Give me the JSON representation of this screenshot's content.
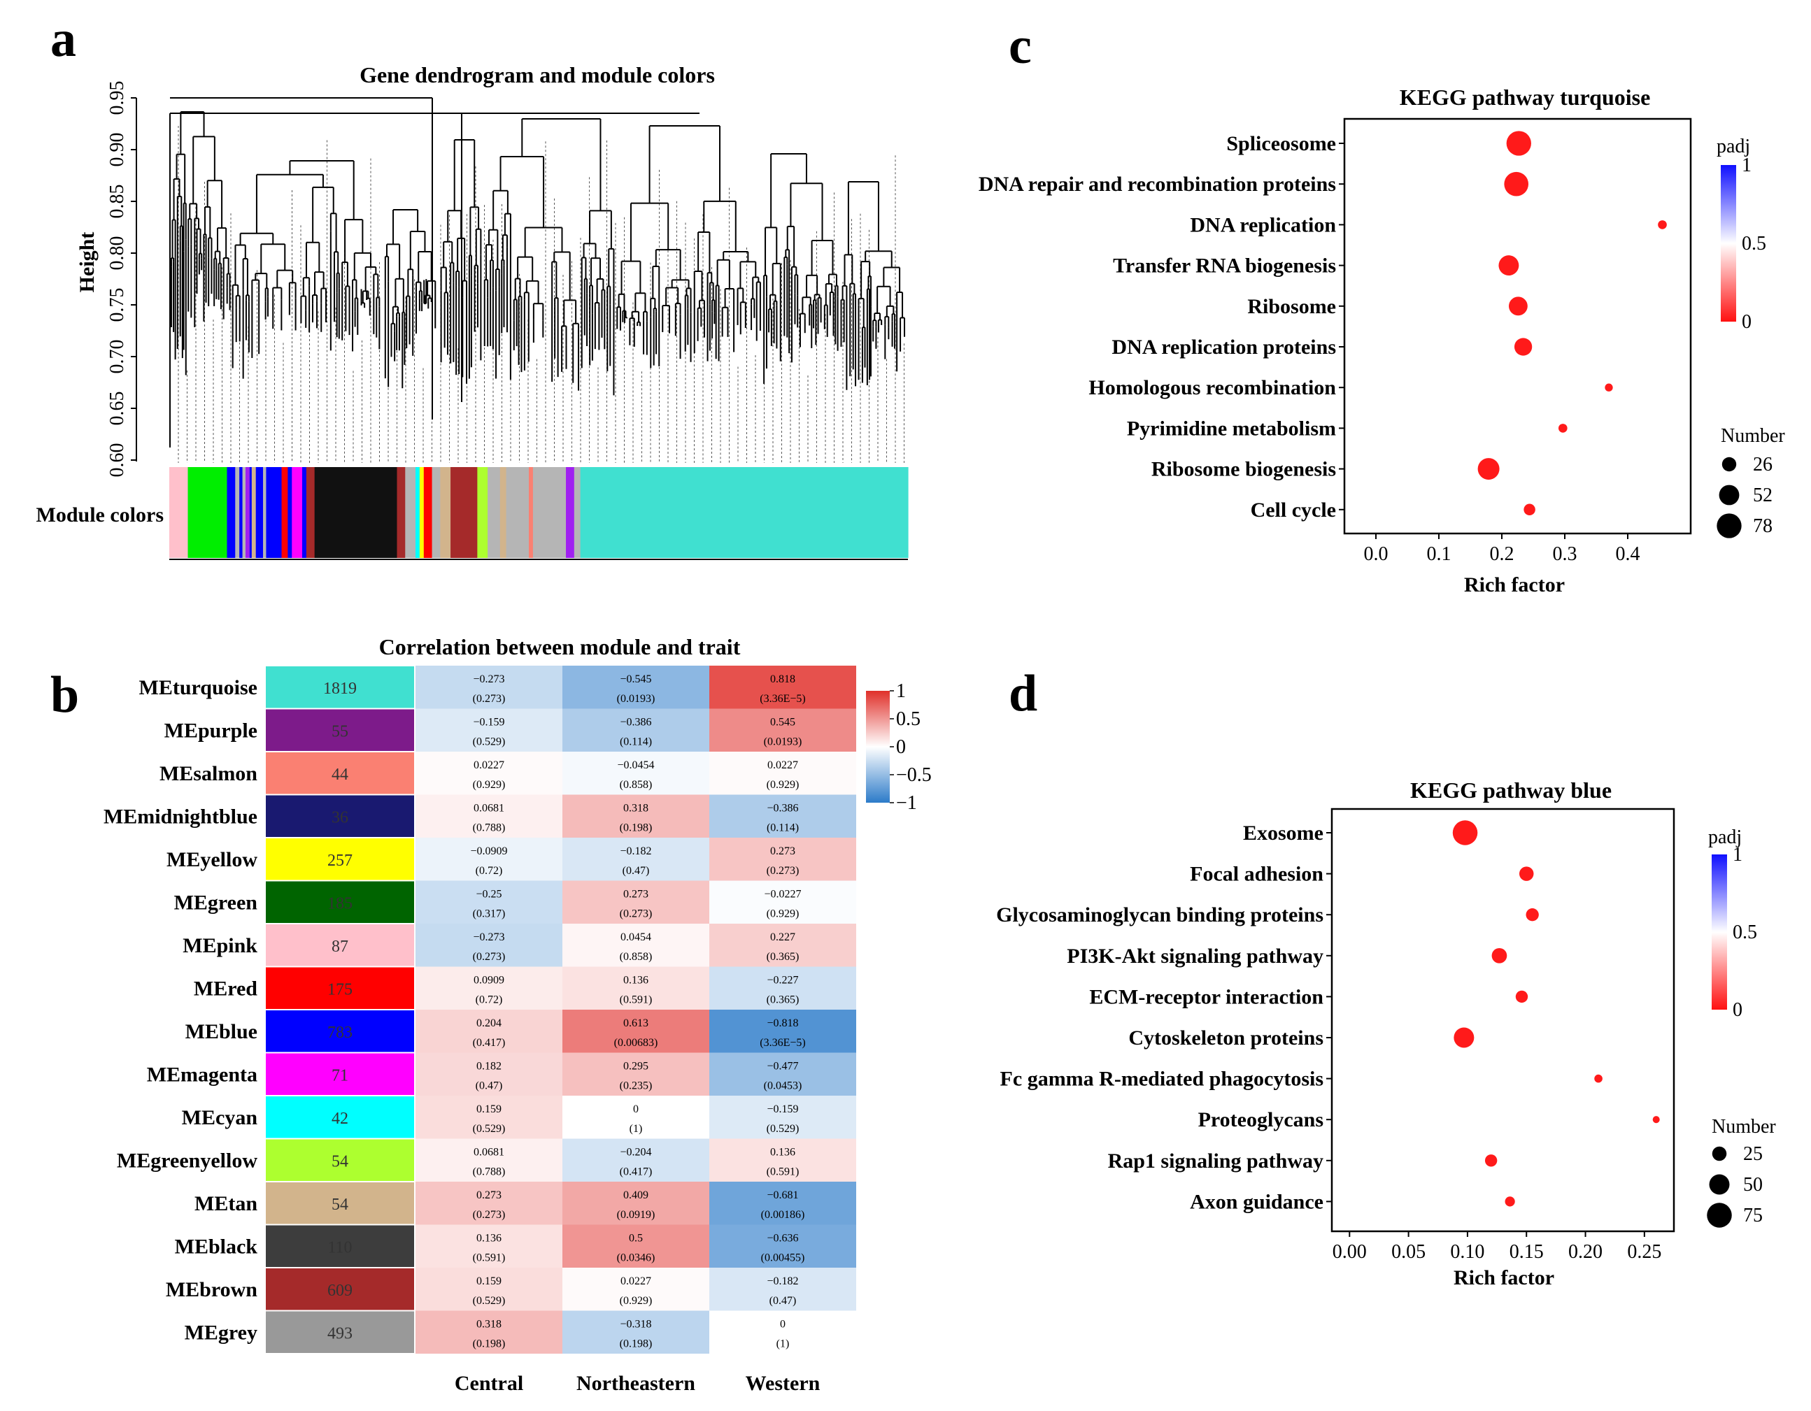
{
  "panels": {
    "a": "a",
    "b": "b",
    "c": "c",
    "d": "d"
  },
  "dendrogram": {
    "title": "Gene dendrogram and module colors",
    "ylabel": "Height",
    "yticks": [
      "0.60",
      "0.65",
      "0.70",
      "0.75",
      "0.80",
      "0.85",
      "0.90",
      "0.95"
    ],
    "module_colors_label": "Module colors"
  },
  "chart_data": [
    {
      "type": "dendrogram",
      "title": "Gene dendrogram and module colors",
      "ylabel": "Height",
      "ylim": [
        0.6,
        0.95
      ],
      "module_color_bar": [
        "pink",
        "green",
        "blue",
        "grey",
        "blue",
        "grey",
        "purple",
        "blue",
        "tan",
        "blue",
        "grey",
        "blue",
        "red",
        "blue",
        "magenta",
        "blue",
        "brown",
        "black",
        "brown",
        "grey",
        "cyan",
        "yellow",
        "red",
        "grey",
        "tan",
        "brown",
        "greenyellow",
        "grey",
        "tan",
        "grey",
        "salmon",
        "grey",
        "purple",
        "grey",
        "turquoise"
      ]
    },
    {
      "type": "heatmap",
      "title": "Correlation between module and trait",
      "rows": [
        "MEturquoise",
        "MEpurple",
        "MEsalmon",
        "MEmidnightblue",
        "MEyellow",
        "MEgreen",
        "MEpink",
        "MEred",
        "MEblue",
        "MEmagenta",
        "MEcyan",
        "MEgreenyellow",
        "MEtan",
        "MEblack",
        "MEbrown",
        "MEgrey"
      ],
      "row_colors": [
        "#40e0d0",
        "#7d1b8a",
        "#fa8072",
        "#191970",
        "#ffff00",
        "#006400",
        "#ffc0cb",
        "#ff0000",
        "#0000ff",
        "#ff00ff",
        "#00ffff",
        "#adff2f",
        "#d2b48c",
        "#3d3d3d",
        "#a52a2a",
        "#999999"
      ],
      "module_sizes": [
        "1819",
        "55",
        "44",
        "36",
        "257",
        "185",
        "87",
        "175",
        "783",
        "71",
        "42",
        "54",
        "54",
        "110",
        "609",
        "493"
      ],
      "columns": [
        "Central",
        "Northeastern",
        "Western"
      ],
      "correlations": [
        [
          -0.273,
          -0.545,
          0.818
        ],
        [
          -0.159,
          -0.386,
          0.545
        ],
        [
          0.0227,
          -0.0454,
          0.0227
        ],
        [
          0.0681,
          0.318,
          -0.386
        ],
        [
          -0.0909,
          -0.182,
          0.273
        ],
        [
          -0.25,
          0.273,
          -0.0227
        ],
        [
          -0.273,
          0.0454,
          0.227
        ],
        [
          0.0909,
          0.136,
          -0.227
        ],
        [
          0.204,
          0.613,
          -0.818
        ],
        [
          0.182,
          0.295,
          -0.477
        ],
        [
          0.159,
          0,
          -0.159
        ],
        [
          0.0681,
          -0.204,
          0.136
        ],
        [
          0.273,
          0.409,
          -0.681
        ],
        [
          0.136,
          0.5,
          -0.636
        ],
        [
          0.159,
          0.0227,
          -0.182
        ],
        [
          0.318,
          -0.318,
          0
        ]
      ],
      "value_labels": [
        [
          "−0.273",
          "−0.545",
          "0.818"
        ],
        [
          "−0.159",
          "−0.386",
          "0.545"
        ],
        [
          "0.0227",
          "−0.0454",
          "0.0227"
        ],
        [
          "0.0681",
          "0.318",
          "−0.386"
        ],
        [
          "−0.0909",
          "−0.182",
          "0.273"
        ],
        [
          "−0.25",
          "0.273",
          "−0.0227"
        ],
        [
          "−0.273",
          "0.0454",
          "0.227"
        ],
        [
          "0.0909",
          "0.136",
          "−0.227"
        ],
        [
          "0.204",
          "0.613",
          "−0.818"
        ],
        [
          "0.182",
          "0.295",
          "−0.477"
        ],
        [
          "0.159",
          "0",
          "−0.159"
        ],
        [
          "0.0681",
          "−0.204",
          "0.136"
        ],
        [
          "0.273",
          "0.409",
          "−0.681"
        ],
        [
          "0.136",
          "0.5",
          "−0.636"
        ],
        [
          "0.159",
          "0.0227",
          "−0.182"
        ],
        [
          "0.318",
          "−0.318",
          "0"
        ]
      ],
      "pvalues": [
        [
          "(0.273)",
          "(0.0193)",
          "(3.36E−5)"
        ],
        [
          "(0.529)",
          "(0.114)",
          "(0.0193)"
        ],
        [
          "(0.929)",
          "(0.858)",
          "(0.929)"
        ],
        [
          "(0.788)",
          "(0.198)",
          "(0.114)"
        ],
        [
          "(0.72)",
          "(0.47)",
          "(0.273)"
        ],
        [
          "(0.317)",
          "(0.273)",
          "(0.929)"
        ],
        [
          "(0.273)",
          "(0.858)",
          "(0.365)"
        ],
        [
          "(0.72)",
          "(0.591)",
          "(0.365)"
        ],
        [
          "(0.417)",
          "(0.00683)",
          "(3.36E−5)"
        ],
        [
          "(0.47)",
          "(0.235)",
          "(0.0453)"
        ],
        [
          "(0.529)",
          "(1)",
          "(0.529)"
        ],
        [
          "(0.788)",
          "(0.417)",
          "(0.591)"
        ],
        [
          "(0.273)",
          "(0.0919)",
          "(0.00186)"
        ],
        [
          "(0.591)",
          "(0.0346)",
          "(0.00455)"
        ],
        [
          "(0.529)",
          "(0.929)",
          "(0.47)"
        ],
        [
          "(0.198)",
          "(0.198)",
          "(1)"
        ]
      ],
      "legend_ticks": [
        "1",
        "0.5",
        "0",
        "−0.5",
        "−1"
      ],
      "legend_values": [
        1,
        0.5,
        0,
        -0.5,
        -1
      ],
      "scale_colors": {
        "negative": "#2c7bc9",
        "neutral": "#ffffff",
        "positive": "#e0302a"
      }
    },
    {
      "type": "scatter",
      "title": "KEGG pathway turquoise",
      "xlabel": "Rich factor",
      "xlim": [
        -0.05,
        0.5
      ],
      "xticks": [
        0,
        0.1,
        0.2,
        0.3,
        0.4
      ],
      "xtick_labels": [
        "0.0",
        "0.1",
        "0.2",
        "0.3",
        "0.4"
      ],
      "categories": [
        "Spliceosome",
        "DNA repair and recombination proteins",
        "DNA replication",
        "Transfer RNA biogenesis",
        "Ribosome",
        "DNA replication proteins",
        "Homologous recombination",
        "Pyrimidine metabolism",
        "Ribosome biogenesis",
        "Cell cycle"
      ],
      "rich_factor": [
        0.227,
        0.223,
        0.455,
        0.211,
        0.226,
        0.234,
        0.37,
        0.297,
        0.179,
        0.244
      ],
      "number": [
        78,
        75,
        10,
        52,
        45,
        40,
        8,
        10,
        60,
        17
      ],
      "padj": [
        0,
        0,
        0,
        0,
        0,
        0,
        0,
        0,
        0,
        0
      ],
      "color_legend_title": "padj",
      "color_legend_ticks": [
        "1",
        "0.5",
        "0"
      ],
      "color_legend_values": [
        1,
        0.5,
        0
      ],
      "size_legend_title": "Number",
      "size_legend_values": [
        26,
        52,
        78
      ],
      "size_legend_labels": [
        "26",
        "52",
        "78"
      ],
      "point_color": "#ff1a1a"
    },
    {
      "type": "scatter",
      "title": "KEGG pathway blue",
      "xlabel": "Rich factor",
      "xlim": [
        -0.015,
        0.275
      ],
      "xticks": [
        0,
        0.05,
        0.1,
        0.15,
        0.2,
        0.25
      ],
      "xtick_labels": [
        "0.00",
        "0.05",
        "0.10",
        "0.15",
        "0.20",
        "0.25"
      ],
      "categories": [
        "Exosome",
        "Focal adhesion",
        "Glycosaminoglycan binding proteins",
        "PI3K-Akt signaling pathway",
        "ECM-receptor interaction",
        "Cytoskeleton proteins",
        "Fc gamma R-mediated phagocytosis",
        "Proteoglycans",
        "Rap1 signaling pathway",
        "Axon guidance"
      ],
      "rich_factor": [
        0.098,
        0.15,
        0.155,
        0.127,
        0.146,
        0.097,
        0.211,
        0.26,
        0.12,
        0.136
      ],
      "number": [
        75,
        25,
        20,
        28,
        18,
        50,
        8,
        6,
        18,
        12
      ],
      "padj": [
        0,
        0,
        0,
        0,
        0,
        0,
        0,
        0,
        0,
        0
      ],
      "color_legend_title": "padj",
      "color_legend_ticks": [
        "1",
        "0.5",
        "0"
      ],
      "color_legend_values": [
        1,
        0.5,
        0
      ],
      "size_legend_title": "Number",
      "size_legend_values": [
        25,
        50,
        75
      ],
      "size_legend_labels": [
        "25",
        "50",
        "75"
      ],
      "point_color": "#ff1a1a"
    }
  ]
}
